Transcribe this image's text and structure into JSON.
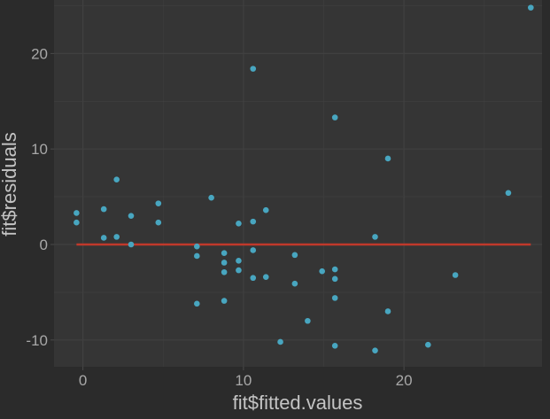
{
  "chart_data": {
    "type": "scatter",
    "title": "",
    "xlabel": "fit$fitted.values",
    "ylabel": "fit$residuals",
    "xlim": [
      -1.8,
      28.6
    ],
    "ylim": [
      -12.8,
      25.6
    ],
    "x_ticks": [
      0,
      10,
      20
    ],
    "y_ticks": [
      -10,
      0,
      10,
      20
    ],
    "x_tick_labels": [
      "0",
      "10",
      "20"
    ],
    "y_tick_labels": [
      "-10",
      "0",
      "10",
      "20"
    ],
    "grid": true,
    "legend": "none",
    "reference_line": {
      "x": [
        -0.4,
        27.9
      ],
      "y": [
        0,
        0
      ]
    },
    "points": [
      {
        "x": -0.4,
        "y": 3.3
      },
      {
        "x": -0.4,
        "y": 2.3
      },
      {
        "x": 1.3,
        "y": 3.7
      },
      {
        "x": 1.3,
        "y": 0.7
      },
      {
        "x": 2.1,
        "y": 6.8
      },
      {
        "x": 2.1,
        "y": 0.8
      },
      {
        "x": 3.0,
        "y": 3.0
      },
      {
        "x": 3.0,
        "y": 0.0
      },
      {
        "x": 4.7,
        "y": 4.3
      },
      {
        "x": 4.7,
        "y": 2.3
      },
      {
        "x": 7.1,
        "y": -0.2
      },
      {
        "x": 7.1,
        "y": -1.2
      },
      {
        "x": 7.1,
        "y": -6.2
      },
      {
        "x": 8.0,
        "y": 4.9
      },
      {
        "x": 8.8,
        "y": -0.9
      },
      {
        "x": 8.8,
        "y": -1.9
      },
      {
        "x": 8.8,
        "y": -2.9
      },
      {
        "x": 8.8,
        "y": -5.9
      },
      {
        "x": 9.7,
        "y": 2.2
      },
      {
        "x": 9.7,
        "y": -1.7
      },
      {
        "x": 9.7,
        "y": -2.7
      },
      {
        "x": 10.6,
        "y": 18.4
      },
      {
        "x": 10.6,
        "y": 2.4
      },
      {
        "x": 10.6,
        "y": -0.6
      },
      {
        "x": 10.6,
        "y": -3.5
      },
      {
        "x": 11.4,
        "y": 3.6
      },
      {
        "x": 11.4,
        "y": -3.4
      },
      {
        "x": 12.3,
        "y": -10.2
      },
      {
        "x": 13.2,
        "y": -1.1
      },
      {
        "x": 13.2,
        "y": -4.1
      },
      {
        "x": 14.0,
        "y": -8.0
      },
      {
        "x": 14.9,
        "y": -2.8
      },
      {
        "x": 15.7,
        "y": 13.3
      },
      {
        "x": 15.7,
        "y": -2.6
      },
      {
        "x": 15.7,
        "y": -3.6
      },
      {
        "x": 15.7,
        "y": -5.6
      },
      {
        "x": 15.7,
        "y": -10.6
      },
      {
        "x": 18.2,
        "y": 0.8
      },
      {
        "x": 18.2,
        "y": -11.1
      },
      {
        "x": 19.0,
        "y": 9.0
      },
      {
        "x": 19.0,
        "y": -7.0
      },
      {
        "x": 21.5,
        "y": -10.5
      },
      {
        "x": 23.2,
        "y": -3.2
      },
      {
        "x": 26.5,
        "y": 5.4
      },
      {
        "x": 27.9,
        "y": 24.8
      }
    ],
    "colors": {
      "panel": "#353535",
      "grid": "#404040",
      "points": "#48a6c0",
      "line": "#c0392b"
    }
  }
}
